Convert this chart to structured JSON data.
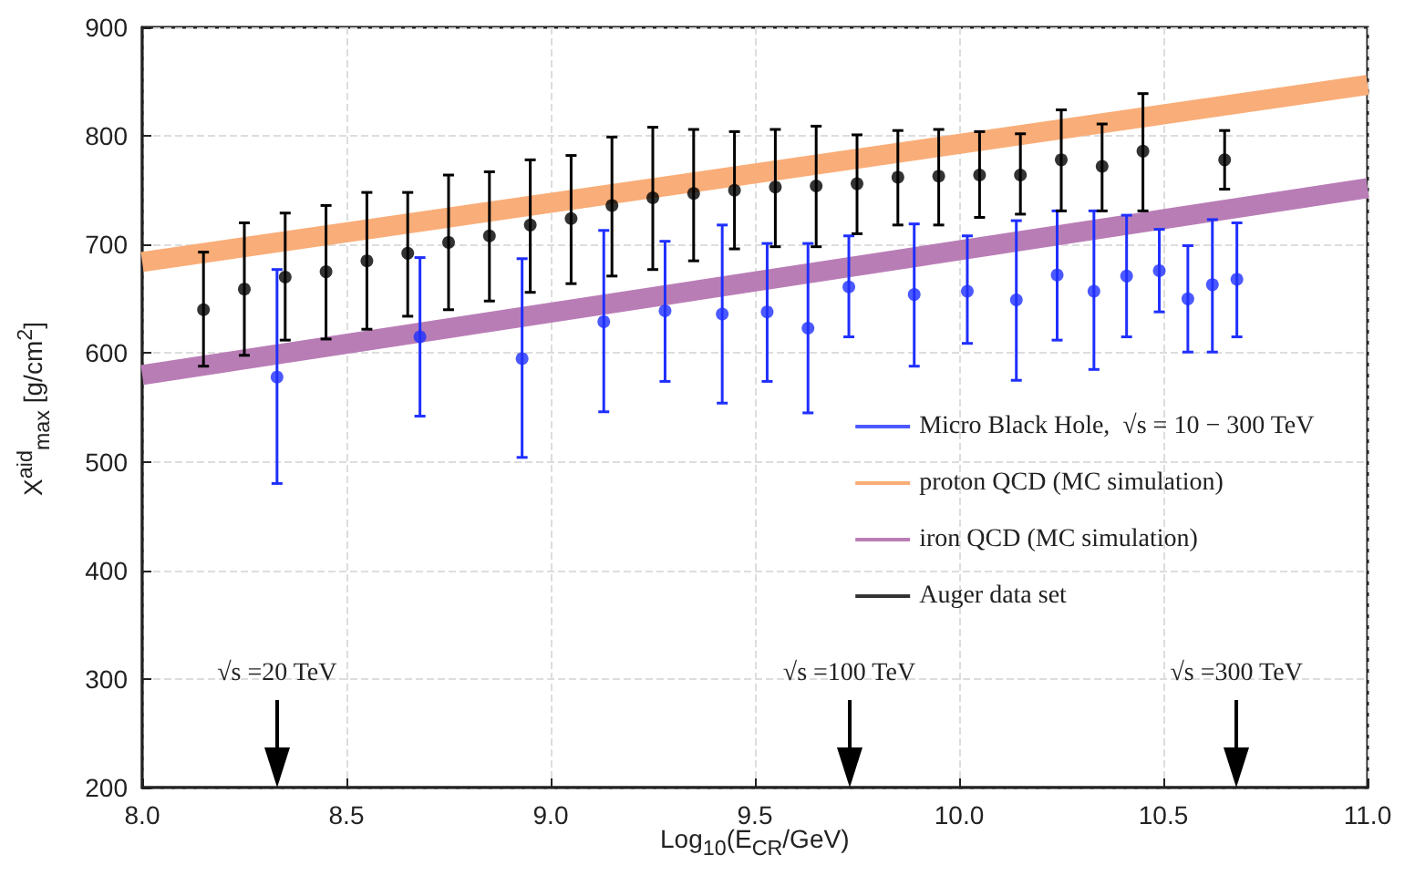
{
  "chart_data": {
    "type": "scatter",
    "xlabel": "Log$_{10}$(E$_{CR}$/GeV)",
    "ylabel": "X$^{aid}$$_{max}$ [g/cm$^{2}$]",
    "xlim": [
      8.0,
      11.0
    ],
    "xticks": [
      {
        "value": 8,
        "label": "8.0"
      },
      {
        "value": 8.5,
        "label": "8.5"
      },
      {
        "value": 9,
        "label": "9.0"
      },
      {
        "value": 9.5,
        "label": "9.5"
      },
      {
        "value": 10,
        "label": "10.0"
      },
      {
        "value": 10.5,
        "label": "10.5"
      },
      {
        "value": 11,
        "label": "11.0"
      }
    ],
    "ylim": [
      200,
      900
    ],
    "yticks": [
      200,
      300,
      400,
      500,
      600,
      700,
      800,
      900
    ],
    "grid": true,
    "legend": "right",
    "series": [
      {
        "name": "Micro Black Hole,  √s = 10 − 300 TeV",
        "color": "#1f2fff",
        "x": [
          8.33,
          8.68,
          8.93,
          9.13,
          9.28,
          9.42,
          9.53,
          9.63,
          9.73,
          9.89,
          10.02,
          10.14,
          10.24,
          10.33,
          10.41,
          10.49,
          10.56,
          10.62,
          10.68
        ],
        "values": [
          578,
          615,
          595,
          629,
          639,
          636,
          638,
          623,
          661,
          654,
          657,
          649,
          672,
          657,
          671,
          676,
          650,
          663,
          668
        ],
        "errors": [
          [
            480,
            677
          ],
          [
            542,
            688
          ],
          [
            504,
            687
          ],
          [
            546,
            713
          ],
          [
            574,
            703
          ],
          [
            554,
            718
          ],
          [
            574,
            701
          ],
          [
            545,
            701
          ],
          [
            615,
            708
          ],
          [
            588,
            719
          ],
          [
            609,
            708
          ],
          [
            575,
            722
          ],
          [
            612,
            731
          ],
          [
            585,
            731
          ],
          [
            615,
            727
          ],
          [
            638,
            714
          ],
          [
            601,
            699
          ],
          [
            601,
            723
          ],
          [
            615,
            720
          ]
        ]
      },
      {
        "name": "proton QCD (MC simulation)",
        "type": "line",
        "color": "#f9ad78",
        "x": [
          8.0,
          11.0
        ],
        "values": [
          684,
          847
        ]
      },
      {
        "name": "iron QCD (MC simulation)",
        "type": "line",
        "color": "#b97db6",
        "x": [
          8.0,
          11.0
        ],
        "values": [
          580,
          752
        ]
      },
      {
        "name": "Auger data set",
        "color": "#000000",
        "x": [
          8.15,
          8.25,
          8.35,
          8.45,
          8.55,
          8.65,
          8.75,
          8.85,
          8.95,
          9.05,
          9.15,
          9.25,
          9.35,
          9.45,
          9.55,
          9.65,
          9.75,
          9.85,
          9.95,
          10.05,
          10.15,
          10.25,
          10.35,
          10.45,
          10.65
        ],
        "values": [
          640,
          659,
          670,
          675,
          685,
          692,
          702,
          708,
          718,
          724,
          736,
          743,
          747,
          750,
          753,
          754,
          756,
          762,
          763,
          764,
          764,
          778,
          772,
          786,
          778
        ],
        "errors": [
          [
            588,
            693
          ],
          [
            598,
            720
          ],
          [
            612,
            729
          ],
          [
            613,
            736
          ],
          [
            622,
            748
          ],
          [
            634,
            748
          ],
          [
            640,
            764
          ],
          [
            648,
            767
          ],
          [
            656,
            778
          ],
          [
            664,
            782
          ],
          [
            671,
            799
          ],
          [
            677,
            808
          ],
          [
            685,
            806
          ],
          [
            696,
            804
          ],
          [
            698,
            806
          ],
          [
            698,
            809
          ],
          [
            710,
            801
          ],
          [
            718,
            805
          ],
          [
            718,
            806
          ],
          [
            725,
            804
          ],
          [
            728,
            802
          ],
          [
            731,
            824
          ],
          [
            731,
            811
          ],
          [
            731,
            839
          ],
          [
            751,
            805
          ]
        ]
      }
    ],
    "annotations": [
      "√s =20 TeV",
      "√s =100 TeV",
      "√s =300 TeV"
    ]
  }
}
